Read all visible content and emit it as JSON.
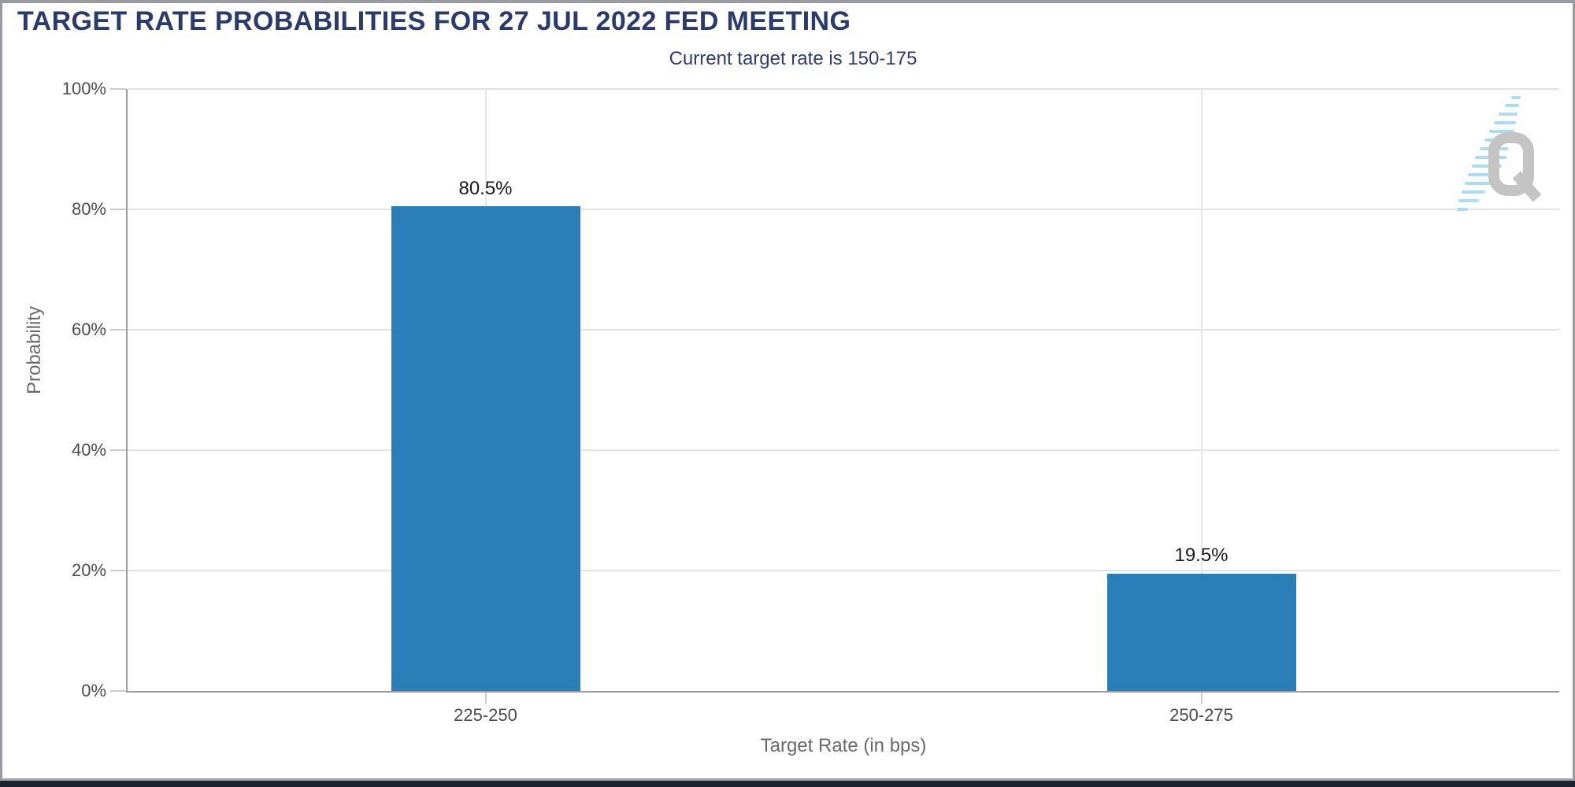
{
  "chart_data": {
    "type": "bar",
    "title": "TARGET RATE PROBABILITIES FOR 27 JUL 2022 FED MEETING",
    "subtitle": "Current target rate is 150-175",
    "categories": [
      "225-250",
      "250-275"
    ],
    "values": [
      80.5,
      19.5
    ],
    "value_labels": [
      "80.5%",
      "19.5%"
    ],
    "xlabel": "Target Rate (in bps)",
    "ylabel": "Probability",
    "ylim": [
      0,
      100
    ],
    "yticks": [
      0,
      20,
      40,
      60,
      80,
      100
    ],
    "ytick_labels": [
      "0%",
      "20%",
      "40%",
      "60%",
      "80%",
      "100%"
    ],
    "grid": true,
    "legend": false,
    "bar_color": "#2a7fb8"
  },
  "watermark": {
    "letter": "Q"
  },
  "colors": {
    "title_navy": "#2b3a6d",
    "bar_blue": "#2a7fb8",
    "gridline_gray": "#e3e3e3",
    "axis_gray": "#9e9e9e",
    "tick_text_gray": "#4c4c4c",
    "axis_title_gray": "#6a6a6a",
    "footer_bar_navy": "#1c2230",
    "swoosh_blue": "#a9ddf4",
    "logo_gray": "#c4c4c4"
  }
}
